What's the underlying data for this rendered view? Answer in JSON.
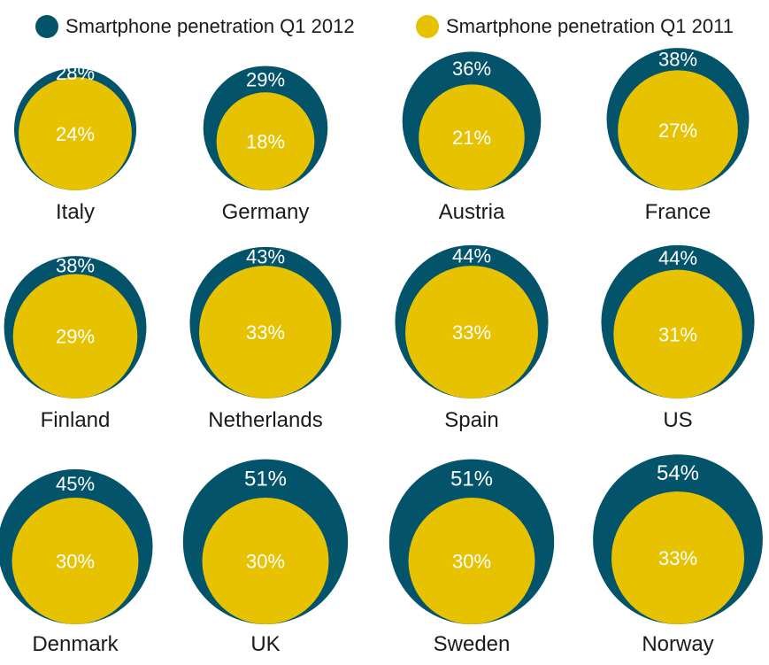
{
  "chart_data": {
    "type": "nested-bubble",
    "legend": [
      {
        "name": "Smartphone penetration Q1 2012",
        "color": "#03546a"
      },
      {
        "name": "Smartphone penetration Q1 2011",
        "color": "#e6c200"
      }
    ],
    "countries": [
      {
        "country": "Italy",
        "q1_2012": 28,
        "q1_2011": 24,
        "label_2012": "28%",
        "label_2011": "24%"
      },
      {
        "country": "Germany",
        "q1_2012": 29,
        "q1_2011": 18,
        "label_2012": "29%",
        "label_2011": "18%"
      },
      {
        "country": "Austria",
        "q1_2012": 36,
        "q1_2011": 21,
        "label_2012": "36%",
        "label_2011": "21%"
      },
      {
        "country": "France",
        "q1_2012": 38,
        "q1_2011": 27,
        "label_2012": "38%",
        "label_2011": "27%"
      },
      {
        "country": "Finland",
        "q1_2012": 38,
        "q1_2011": 29,
        "label_2012": "38%",
        "label_2011": "29%"
      },
      {
        "country": "Netherlands",
        "q1_2012": 43,
        "q1_2011": 33,
        "label_2012": "43%",
        "label_2011": "33%"
      },
      {
        "country": "Spain",
        "q1_2012": 44,
        "q1_2011": 33,
        "label_2012": "44%",
        "label_2011": "33%"
      },
      {
        "country": "US",
        "q1_2012": 44,
        "q1_2011": 31,
        "label_2012": "44%",
        "label_2011": "31%"
      },
      {
        "country": "Denmark",
        "q1_2012": 45,
        "q1_2011": 30,
        "label_2012": "45%",
        "label_2011": "30%"
      },
      {
        "country": "UK",
        "q1_2012": 51,
        "q1_2011": 30,
        "label_2012": "51%",
        "label_2011": "30%"
      },
      {
        "country": "Sweden",
        "q1_2012": 51,
        "q1_2011": 30,
        "label_2012": "51%",
        "label_2011": "30%"
      },
      {
        "country": "Norway",
        "q1_2012": 54,
        "q1_2011": 33,
        "label_2012": "54%",
        "label_2011": "33%"
      }
    ]
  }
}
